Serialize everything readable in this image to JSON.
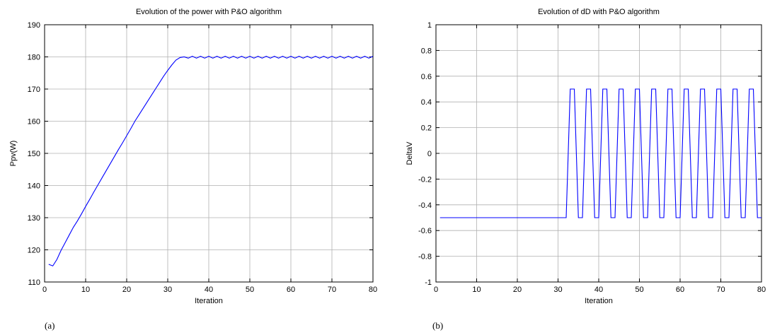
{
  "chart_data": [
    {
      "type": "line",
      "title": "Evolution of the power with P&O algorithm",
      "xlabel": "Iteration",
      "ylabel": "Ppv(W)",
      "caption": "(a)",
      "xlim": [
        0,
        80
      ],
      "ylim": [
        110,
        190
      ],
      "xticks": [
        0,
        10,
        20,
        30,
        40,
        50,
        60,
        70,
        80
      ],
      "yticks": [
        110,
        120,
        130,
        140,
        150,
        160,
        170,
        180,
        190
      ],
      "grid": true,
      "line_color": "#0000ff",
      "x": [
        1,
        2,
        3,
        4,
        5,
        6,
        7,
        8,
        9,
        10,
        11,
        12,
        13,
        14,
        15,
        16,
        17,
        18,
        19,
        20,
        21,
        22,
        23,
        24,
        25,
        26,
        27,
        28,
        29,
        30,
        31,
        32,
        33,
        34,
        35,
        36,
        37,
        38,
        39,
        40,
        41,
        42,
        43,
        44,
        45,
        46,
        47,
        48,
        49,
        50,
        51,
        52,
        53,
        54,
        55,
        56,
        57,
        58,
        59,
        60,
        61,
        62,
        63,
        64,
        65,
        66,
        67,
        68,
        69,
        70,
        71,
        72,
        73,
        74,
        75,
        76,
        77,
        78,
        79,
        80
      ],
      "values": [
        115.5,
        115,
        117,
        119.8,
        122.2,
        124.6,
        127,
        129,
        131.2,
        133.5,
        135.7,
        138,
        140.2,
        142.4,
        144.6,
        146.8,
        149,
        151.2,
        153.3,
        155.5,
        157.7,
        160,
        162,
        164,
        166,
        168,
        170,
        172,
        174,
        175.8,
        177.5,
        179,
        179.8,
        180,
        179.6,
        180.2,
        179.6,
        180.2,
        179.6,
        180.2,
        179.6,
        180.2,
        179.6,
        180.2,
        179.6,
        180.2,
        179.6,
        180.2,
        179.6,
        180.2,
        179.6,
        180.2,
        179.6,
        180.2,
        179.6,
        180.2,
        179.6,
        180.2,
        179.6,
        180.2,
        179.6,
        180.2,
        179.6,
        180.2,
        179.6,
        180.2,
        179.6,
        180.2,
        179.6,
        180.2,
        179.6,
        180.2,
        179.6,
        180.2,
        179.6,
        180.2,
        179.6,
        180.2,
        179.6,
        180.2
      ]
    },
    {
      "type": "line",
      "title": "Evolution of dD with P&O algorithm",
      "xlabel": "Iteration",
      "ylabel": "DeltaV",
      "caption": "(b)",
      "xlim": [
        0,
        80
      ],
      "ylim": [
        -1,
        1
      ],
      "xticks": [
        0,
        10,
        20,
        30,
        40,
        50,
        60,
        70,
        80
      ],
      "yticks": [
        -1,
        -0.8,
        -0.6,
        -0.4,
        -0.2,
        0,
        0.2,
        0.4,
        0.6,
        0.8,
        1
      ],
      "grid": true,
      "line_color": "#0000ff",
      "x": [
        1,
        32,
        33,
        34,
        35,
        36,
        37,
        38,
        39,
        40,
        41,
        42,
        43,
        44,
        45,
        46,
        47,
        48,
        49,
        50,
        51,
        52,
        53,
        54,
        55,
        56,
        57,
        58,
        59,
        60,
        61,
        62,
        63,
        64,
        65,
        66,
        67,
        68,
        69,
        70,
        71,
        72,
        73,
        74,
        75,
        76,
        77,
        78,
        79,
        80
      ],
      "values": [
        -0.5,
        -0.5,
        0.5,
        0.5,
        -0.5,
        -0.5,
        0.5,
        0.5,
        -0.5,
        -0.5,
        0.5,
        0.5,
        -0.5,
        -0.5,
        0.5,
        0.5,
        -0.5,
        -0.5,
        0.5,
        0.5,
        -0.5,
        -0.5,
        0.5,
        0.5,
        -0.5,
        -0.5,
        0.5,
        0.5,
        -0.5,
        -0.5,
        0.5,
        0.5,
        -0.5,
        -0.5,
        0.5,
        0.5,
        -0.5,
        -0.5,
        0.5,
        0.5,
        -0.5,
        -0.5,
        0.5,
        0.5,
        -0.5,
        -0.5,
        0.5,
        0.5,
        -0.5,
        -0.5
      ]
    }
  ]
}
